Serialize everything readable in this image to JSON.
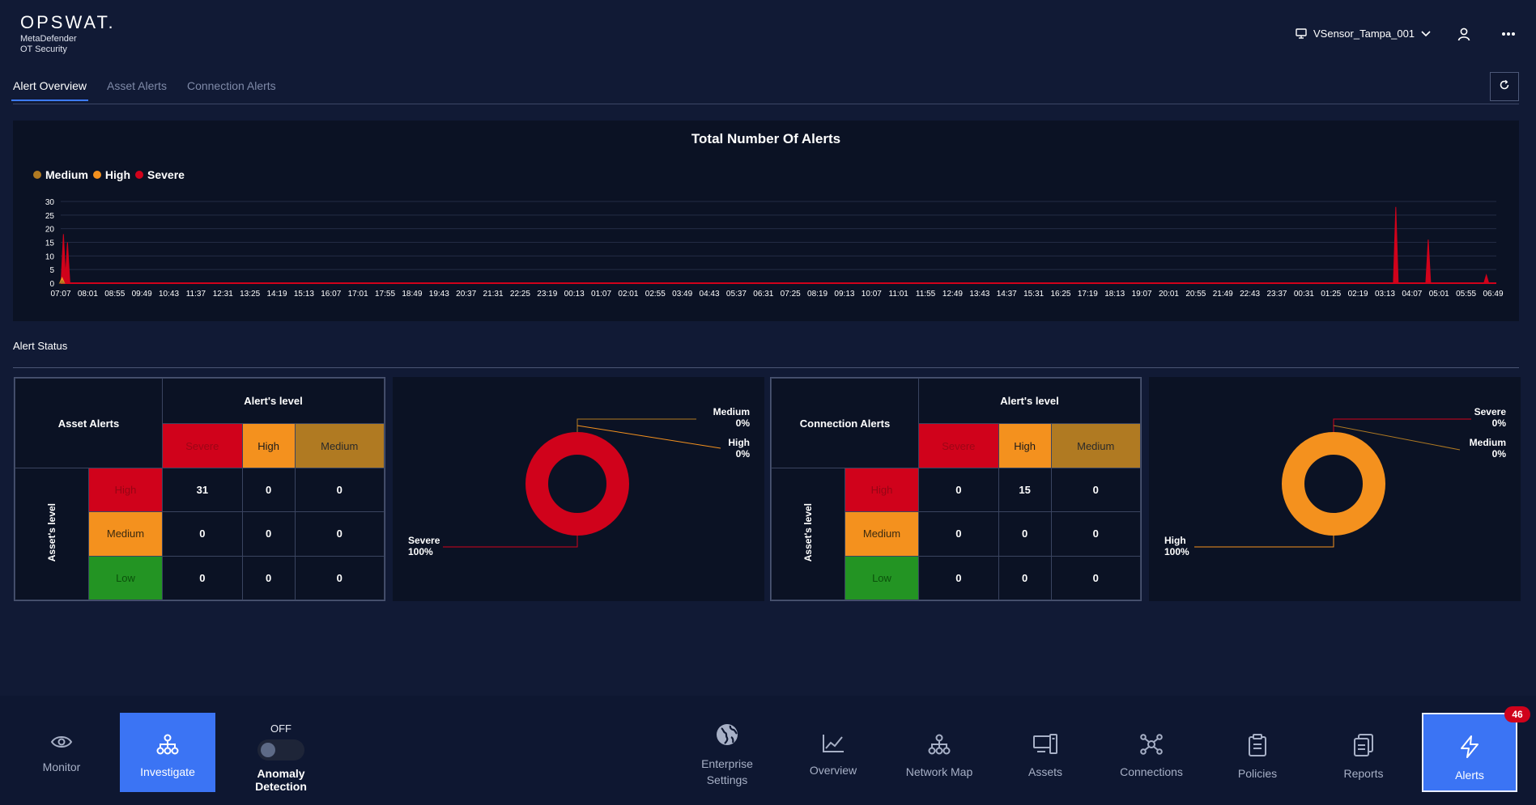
{
  "header": {
    "brand": "OPSWAT.",
    "product_line1": "MetaDefender",
    "product_line2": "OT Security",
    "sensor_name": "VSensor_Tampa_001"
  },
  "tabs": [
    {
      "label": "Alert Overview",
      "active": true
    },
    {
      "label": "Asset Alerts",
      "active": false
    },
    {
      "label": "Connection Alerts",
      "active": false
    }
  ],
  "chart_data": {
    "type": "area",
    "title": "Total Number Of Alerts",
    "legend": [
      {
        "name": "Medium",
        "color": "#b07a22"
      },
      {
        "name": "High",
        "color": "#f4911e"
      },
      {
        "name": "Severe",
        "color": "#d0021b"
      }
    ],
    "legend_position": "top-left",
    "ylim": [
      0,
      30
    ],
    "yticks": [
      0,
      5,
      10,
      15,
      20,
      25,
      30
    ],
    "grid": true,
    "categories": [
      "07:07",
      "08:01",
      "08:55",
      "09:49",
      "10:43",
      "11:37",
      "12:31",
      "13:25",
      "14:19",
      "15:13",
      "16:07",
      "17:01",
      "17:55",
      "18:49",
      "19:43",
      "20:37",
      "21:31",
      "22:25",
      "23:19",
      "00:13",
      "01:07",
      "02:01",
      "02:55",
      "03:49",
      "04:43",
      "05:37",
      "06:31",
      "07:25",
      "08:19",
      "09:13",
      "10:07",
      "11:01",
      "11:55",
      "12:49",
      "13:43",
      "14:37",
      "15:31",
      "16:25",
      "17:19",
      "18:13",
      "19:07",
      "20:01",
      "20:55",
      "21:49",
      "22:43",
      "23:37",
      "00:31",
      "01:25",
      "02:19",
      "03:13",
      "04:07",
      "05:01",
      "05:55",
      "06:49"
    ],
    "series": [
      {
        "name": "Severe",
        "points": [
          [
            0.1,
            18
          ],
          [
            0.25,
            15
          ],
          [
            49.4,
            28
          ],
          [
            50.6,
            16
          ],
          [
            52.75,
            3
          ]
        ]
      },
      {
        "name": "High",
        "points": [
          [
            0.05,
            2
          ]
        ]
      },
      {
        "name": "Medium",
        "points": [
          [
            0.05,
            1
          ]
        ]
      }
    ]
  },
  "alert_status": {
    "title": "Alert Status",
    "asset_matrix": {
      "title": "Asset Alerts",
      "col_header": "Alert's level",
      "row_header": "Asset's level",
      "cols": [
        "Severe",
        "High",
        "Medium"
      ],
      "rows": [
        {
          "label": "High",
          "values": [
            "31",
            "0",
            "0"
          ]
        },
        {
          "label": "Medium",
          "values": [
            "0",
            "0",
            "0"
          ]
        },
        {
          "label": "Low",
          "values": [
            "0",
            "0",
            "0"
          ]
        }
      ]
    },
    "asset_donut": {
      "slices": [
        {
          "name": "Severe",
          "percent": 100,
          "color": "#d0021b"
        },
        {
          "name": "High",
          "percent": 0,
          "color": "#f4911e"
        },
        {
          "name": "Medium",
          "percent": 0,
          "color": "#b07a22"
        }
      ],
      "labels": {
        "medium_name": "Medium",
        "medium_pct": "0%",
        "high_name": "High",
        "high_pct": "0%",
        "severe_name": "Severe",
        "severe_pct": "100%"
      }
    },
    "connection_matrix": {
      "title": "Connection Alerts",
      "col_header": "Alert's level",
      "row_header": "Asset's level",
      "cols": [
        "Severe",
        "High",
        "Medium"
      ],
      "rows": [
        {
          "label": "High",
          "values": [
            "0",
            "15",
            "0"
          ]
        },
        {
          "label": "Medium",
          "values": [
            "0",
            "0",
            "0"
          ]
        },
        {
          "label": "Low",
          "values": [
            "0",
            "0",
            "0"
          ]
        }
      ]
    },
    "connection_donut": {
      "slices": [
        {
          "name": "Severe",
          "percent": 0,
          "color": "#d0021b"
        },
        {
          "name": "Medium",
          "percent": 0,
          "color": "#b07a22"
        },
        {
          "name": "High",
          "percent": 100,
          "color": "#f4911e"
        }
      ],
      "labels": {
        "severe_name": "Severe",
        "severe_pct": "0%",
        "medium_name": "Medium",
        "medium_pct": "0%",
        "high_name": "High",
        "high_pct": "100%"
      }
    }
  },
  "bottom_nav": {
    "monitor": "Monitor",
    "investigate": "Investigate",
    "anomaly_state": "OFF",
    "anomaly_label": "Anomaly Detection",
    "enterprise_line1": "Enterprise",
    "enterprise_line2": "Settings",
    "overview": "Overview",
    "network_map": "Network Map",
    "assets": "Assets",
    "connections": "Connections",
    "policies": "Policies",
    "reports": "Reports",
    "alerts": "Alerts",
    "alerts_badge": "46"
  }
}
